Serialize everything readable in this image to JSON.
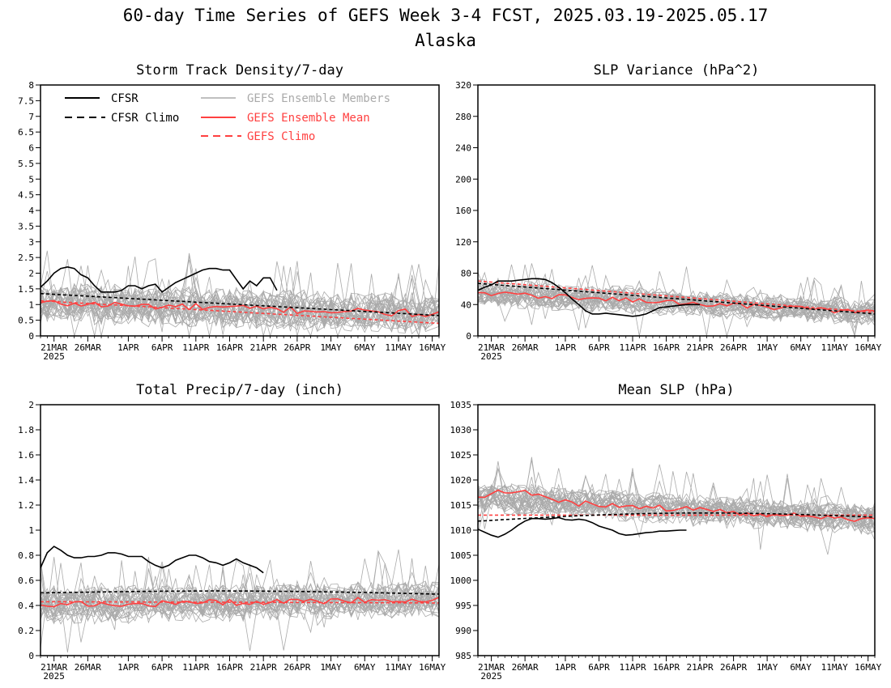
{
  "figure": {
    "title": "60-day Time Series of GEFS Week 3-4 FCST, 2025.03.19-2025.05.17",
    "subtitle": "Alaska"
  },
  "legend": {
    "cfsr": "CFSR",
    "cfsr_climo": "CFSR Climo",
    "members": "GEFS Ensemble Members",
    "mean": "GEFS Ensemble Mean",
    "gefs_climo": "GEFS Climo"
  },
  "colors": {
    "cfsr": "#000000",
    "members": "#aaaaaa",
    "mean": "#ff4040",
    "gefs_climo": "#ff4040"
  },
  "chart_data": [
    {
      "type": "line",
      "title": "Storm Track Density/7-day",
      "x_ticks": [
        "21MAR",
        "26MAR",
        "1APR",
        "6APR",
        "11APR",
        "16APR",
        "21APR",
        "26APR",
        "1MAY",
        "6MAY",
        "11MAY",
        "16MAY"
      ],
      "x_year_label": "2025",
      "y_ticks": [
        "0",
        "0.5",
        "1",
        "1.5",
        "2",
        "2.5",
        "3",
        "3.5",
        "4",
        "4.5",
        "5",
        "5.5",
        "6",
        "6.5",
        "7",
        "7.5",
        "8"
      ],
      "ylim": [
        0,
        8
      ],
      "x_range_days": [
        0,
        59
      ],
      "grid": false,
      "legend_position": "top-left",
      "cfsr": [
        1.55,
        1.75,
        2.0,
        2.15,
        2.2,
        2.15,
        1.95,
        1.85,
        1.6,
        1.4,
        1.4,
        1.4,
        1.45,
        1.6,
        1.6,
        1.5,
        1.6,
        1.65,
        1.4,
        1.55,
        1.7,
        1.8,
        1.9,
        2.0,
        2.1,
        2.15,
        2.15,
        2.1,
        2.1,
        1.8,
        1.5,
        1.75,
        1.6,
        1.85,
        1.85,
        1.45
      ],
      "cfsr_climo_start": 1.35,
      "cfsr_climo_end": 0.65,
      "gefs_mean_base": 1.05,
      "gefs_mean_trend": -0.35,
      "gefs_climo_start": 1.12,
      "gefs_climo_end": 0.4,
      "member_count": 30,
      "member_spread": 0.55
    },
    {
      "type": "line",
      "title": "SLP Variance (hPa^2)",
      "x_ticks": [
        "21MAR",
        "26MAR",
        "1APR",
        "6APR",
        "11APR",
        "16APR",
        "21APR",
        "26APR",
        "1MAY",
        "6MAY",
        "11MAY",
        "16MAY"
      ],
      "x_year_label": "2025",
      "y_ticks": [
        "0",
        "40",
        "80",
        "120",
        "160",
        "200",
        "240",
        "280",
        "320"
      ],
      "ylim": [
        0,
        320
      ],
      "x_range_days": [
        0,
        59
      ],
      "grid": false,
      "cfsr": [
        58,
        62,
        65,
        70,
        70,
        70,
        71,
        72,
        73,
        73,
        72,
        68,
        62,
        55,
        47,
        40,
        32,
        28,
        28,
        29,
        28,
        27,
        26,
        25,
        26,
        28,
        32,
        36,
        37,
        38,
        39,
        40,
        40,
        40
      ],
      "cfsr_climo_start": 67,
      "cfsr_climo_end": 28,
      "gefs_mean_base": 55,
      "gefs_mean_trend": -25,
      "gefs_climo_start": 70,
      "gefs_climo_end": 30,
      "member_count": 30,
      "member_spread": 14
    },
    {
      "type": "line",
      "title": "Total Precip/7-day (inch)",
      "x_ticks": [
        "21MAR",
        "26MAR",
        "1APR",
        "6APR",
        "11APR",
        "16APR",
        "21APR",
        "26APR",
        "1MAY",
        "6MAY",
        "11MAY",
        "16MAY"
      ],
      "x_year_label": "2025",
      "y_ticks": [
        "0",
        "0.2",
        "0.4",
        "0.6",
        "0.8",
        "1",
        "1.2",
        "1.4",
        "1.6",
        "1.8",
        "2"
      ],
      "ylim": [
        0,
        2
      ],
      "x_range_days": [
        0,
        59
      ],
      "grid": false,
      "cfsr": [
        0.7,
        0.82,
        0.87,
        0.84,
        0.8,
        0.78,
        0.78,
        0.79,
        0.79,
        0.8,
        0.82,
        0.82,
        0.81,
        0.79,
        0.79,
        0.79,
        0.75,
        0.72,
        0.7,
        0.72,
        0.76,
        0.78,
        0.8,
        0.8,
        0.78,
        0.75,
        0.74,
        0.72,
        0.74,
        0.77,
        0.74,
        0.72,
        0.7,
        0.66
      ],
      "cfsr_climo_start": 0.5,
      "cfsr_climo_end": 0.49,
      "cfsr_climo_bulge": 0.02,
      "gefs_mean_base": 0.4,
      "gefs_mean_trend": 0.05,
      "gefs_climo_start": 0.43,
      "gefs_climo_end": 0.42,
      "member_count": 30,
      "member_spread": 0.12
    },
    {
      "type": "line",
      "title": "Mean SLP (hPa)",
      "x_ticks": [
        "21MAR",
        "26MAR",
        "1APR",
        "6APR",
        "11APR",
        "16APR",
        "21APR",
        "26APR",
        "1MAY",
        "6MAY",
        "11MAY",
        "16MAY"
      ],
      "x_year_label": "2025",
      "y_ticks": [
        "985",
        "990",
        "995",
        "1000",
        "1005",
        "1010",
        "1015",
        "1020",
        "1025",
        "1030",
        "1035"
      ],
      "ylim": [
        985,
        1035
      ],
      "x_range_days": [
        0,
        59
      ],
      "grid": false,
      "cfsr": [
        1010.2,
        1009.6,
        1009.0,
        1008.6,
        1009.2,
        1010.0,
        1011.0,
        1011.8,
        1012.3,
        1012.3,
        1012.2,
        1012.3,
        1012.5,
        1012.1,
        1012.0,
        1012.2,
        1012.0,
        1011.5,
        1010.8,
        1010.4,
        1010.0,
        1009.3,
        1009.0,
        1009.1,
        1009.3,
        1009.5,
        1009.6,
        1009.8,
        1009.8,
        1009.9,
        1010.0,
        1010.0
      ],
      "cfsr_climo_start": 1011.8,
      "cfsr_climo_end": 1012.6,
      "cfsr_climo_bulge": 1.2,
      "gefs_mean_base": 1016.5,
      "gefs_mean_trend": -4.5,
      "gefs_climo_start": 1013.0,
      "gefs_climo_end": 1013.0,
      "member_count": 30,
      "member_spread": 2.6
    }
  ]
}
